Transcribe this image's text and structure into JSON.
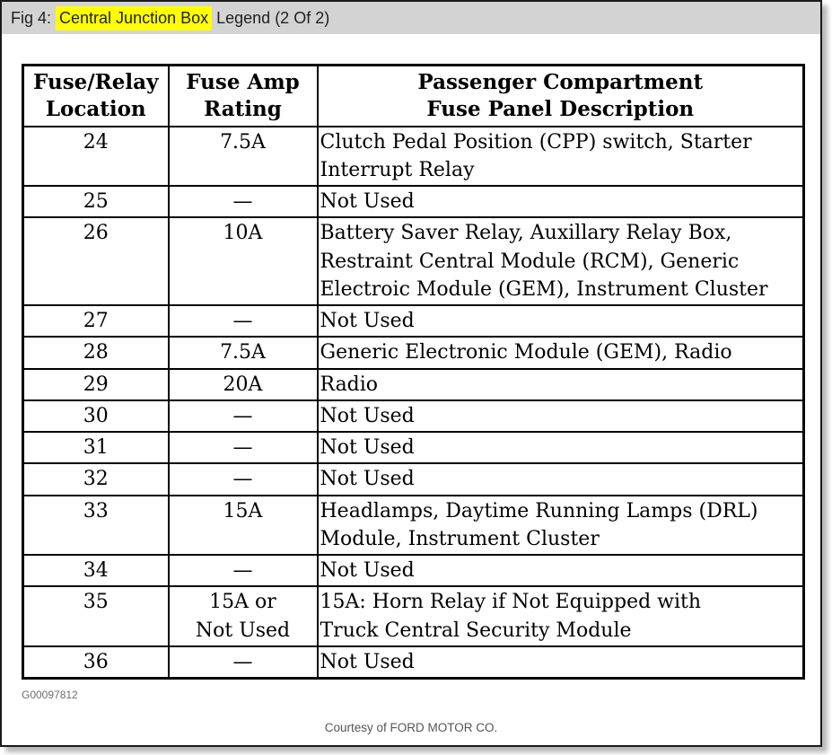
{
  "title": {
    "prefix": "Fig 4: ",
    "highlight": "Central Junction Box",
    "suffix": " Legend (2 Of 2)"
  },
  "table": {
    "headers": [
      "Fuse/Relay\nLocation",
      "Fuse Amp\nRating",
      "Passenger Compartment\nFuse Panel Description"
    ],
    "rows": [
      {
        "location": "24",
        "rating": "7.5A",
        "description": "Clutch Pedal Position (CPP) switch, Starter\nInterrupt Relay"
      },
      {
        "location": "25",
        "rating": "—",
        "description": "Not Used"
      },
      {
        "location": "26",
        "rating": "10A",
        "description": "Battery Saver Relay, Auxillary Relay Box,\nRestraint Central Module (RCM), Generic\nElectroic Module (GEM), Instrument Cluster"
      },
      {
        "location": "27",
        "rating": "—",
        "description": "Not Used"
      },
      {
        "location": "28",
        "rating": "7.5A",
        "description": "Generic Electronic Module (GEM), Radio"
      },
      {
        "location": "29",
        "rating": "20A",
        "description": "Radio"
      },
      {
        "location": "30",
        "rating": "—",
        "description": "Not Used"
      },
      {
        "location": "31",
        "rating": "—",
        "description": "Not Used"
      },
      {
        "location": "32",
        "rating": "—",
        "description": "Not Used"
      },
      {
        "location": "33",
        "rating": "15A",
        "description": "Headlamps, Daytime Running Lamps (DRL)\nModule, Instrument Cluster"
      },
      {
        "location": "34",
        "rating": "—",
        "description": "Not Used"
      },
      {
        "location": "35",
        "rating": "15A or\nNot Used",
        "description": "15A: Horn Relay if Not Equipped with\nTruck Central Security Module"
      },
      {
        "location": "36",
        "rating": "—",
        "description": "Not Used"
      }
    ]
  },
  "footer": {
    "figure_id": "G00097812",
    "courtesy": "Courtesy of FORD MOTOR CO."
  },
  "colors": {
    "title_bar_bg": "#d3d3d3",
    "highlight": "#ffff00",
    "table_border": "#000000",
    "page_bg": "#ffffff",
    "figure_id_text": "#6e6e6e",
    "courtesy_text": "#555555"
  }
}
